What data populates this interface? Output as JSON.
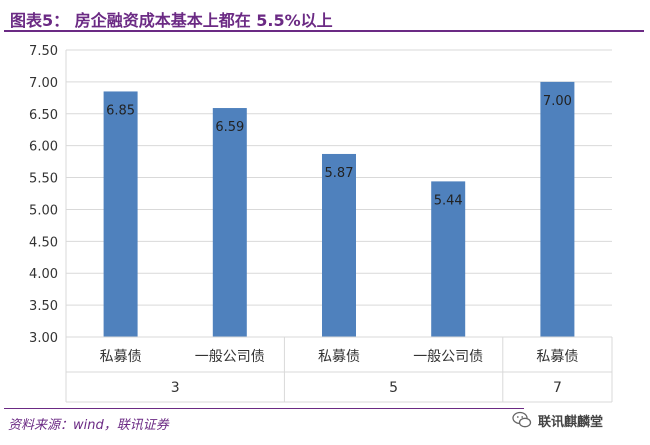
{
  "header": {
    "title": "图表5： 房企融资成本基本上都在 5.5%以上"
  },
  "footer": {
    "source": "资料来源：wind，联讯证券",
    "watermark": "联讯麒麟堂",
    "watermark_icon": "wechat-icon"
  },
  "colors": {
    "bar": "#4f81bd",
    "title": "#6b2a84",
    "grid": "#d9d9d9",
    "axis_text": "#333333"
  },
  "chart_data": {
    "type": "bar",
    "title": "",
    "xlabel": "",
    "ylabel": "",
    "ylim": [
      3.0,
      7.5
    ],
    "yticks": [
      "3.00",
      "3.50",
      "4.00",
      "4.50",
      "5.00",
      "5.50",
      "6.00",
      "6.50",
      "7.00",
      "7.50"
    ],
    "grid": true,
    "legend": "none",
    "groups": [
      {
        "label": "3",
        "categories": [
          "私募债",
          "一般公司债"
        ]
      },
      {
        "label": "5",
        "categories": [
          "私募债",
          "一般公司债"
        ]
      },
      {
        "label": "7",
        "categories": [
          "私募债"
        ]
      }
    ],
    "categories": [
      "私募债",
      "一般公司债",
      "私募债",
      "一般公司债",
      "私募债"
    ],
    "values": [
      6.85,
      6.59,
      5.87,
      5.44,
      7.0
    ],
    "data_labels": [
      "6.85",
      "6.59",
      "5.87",
      "5.44",
      "7.00"
    ]
  }
}
